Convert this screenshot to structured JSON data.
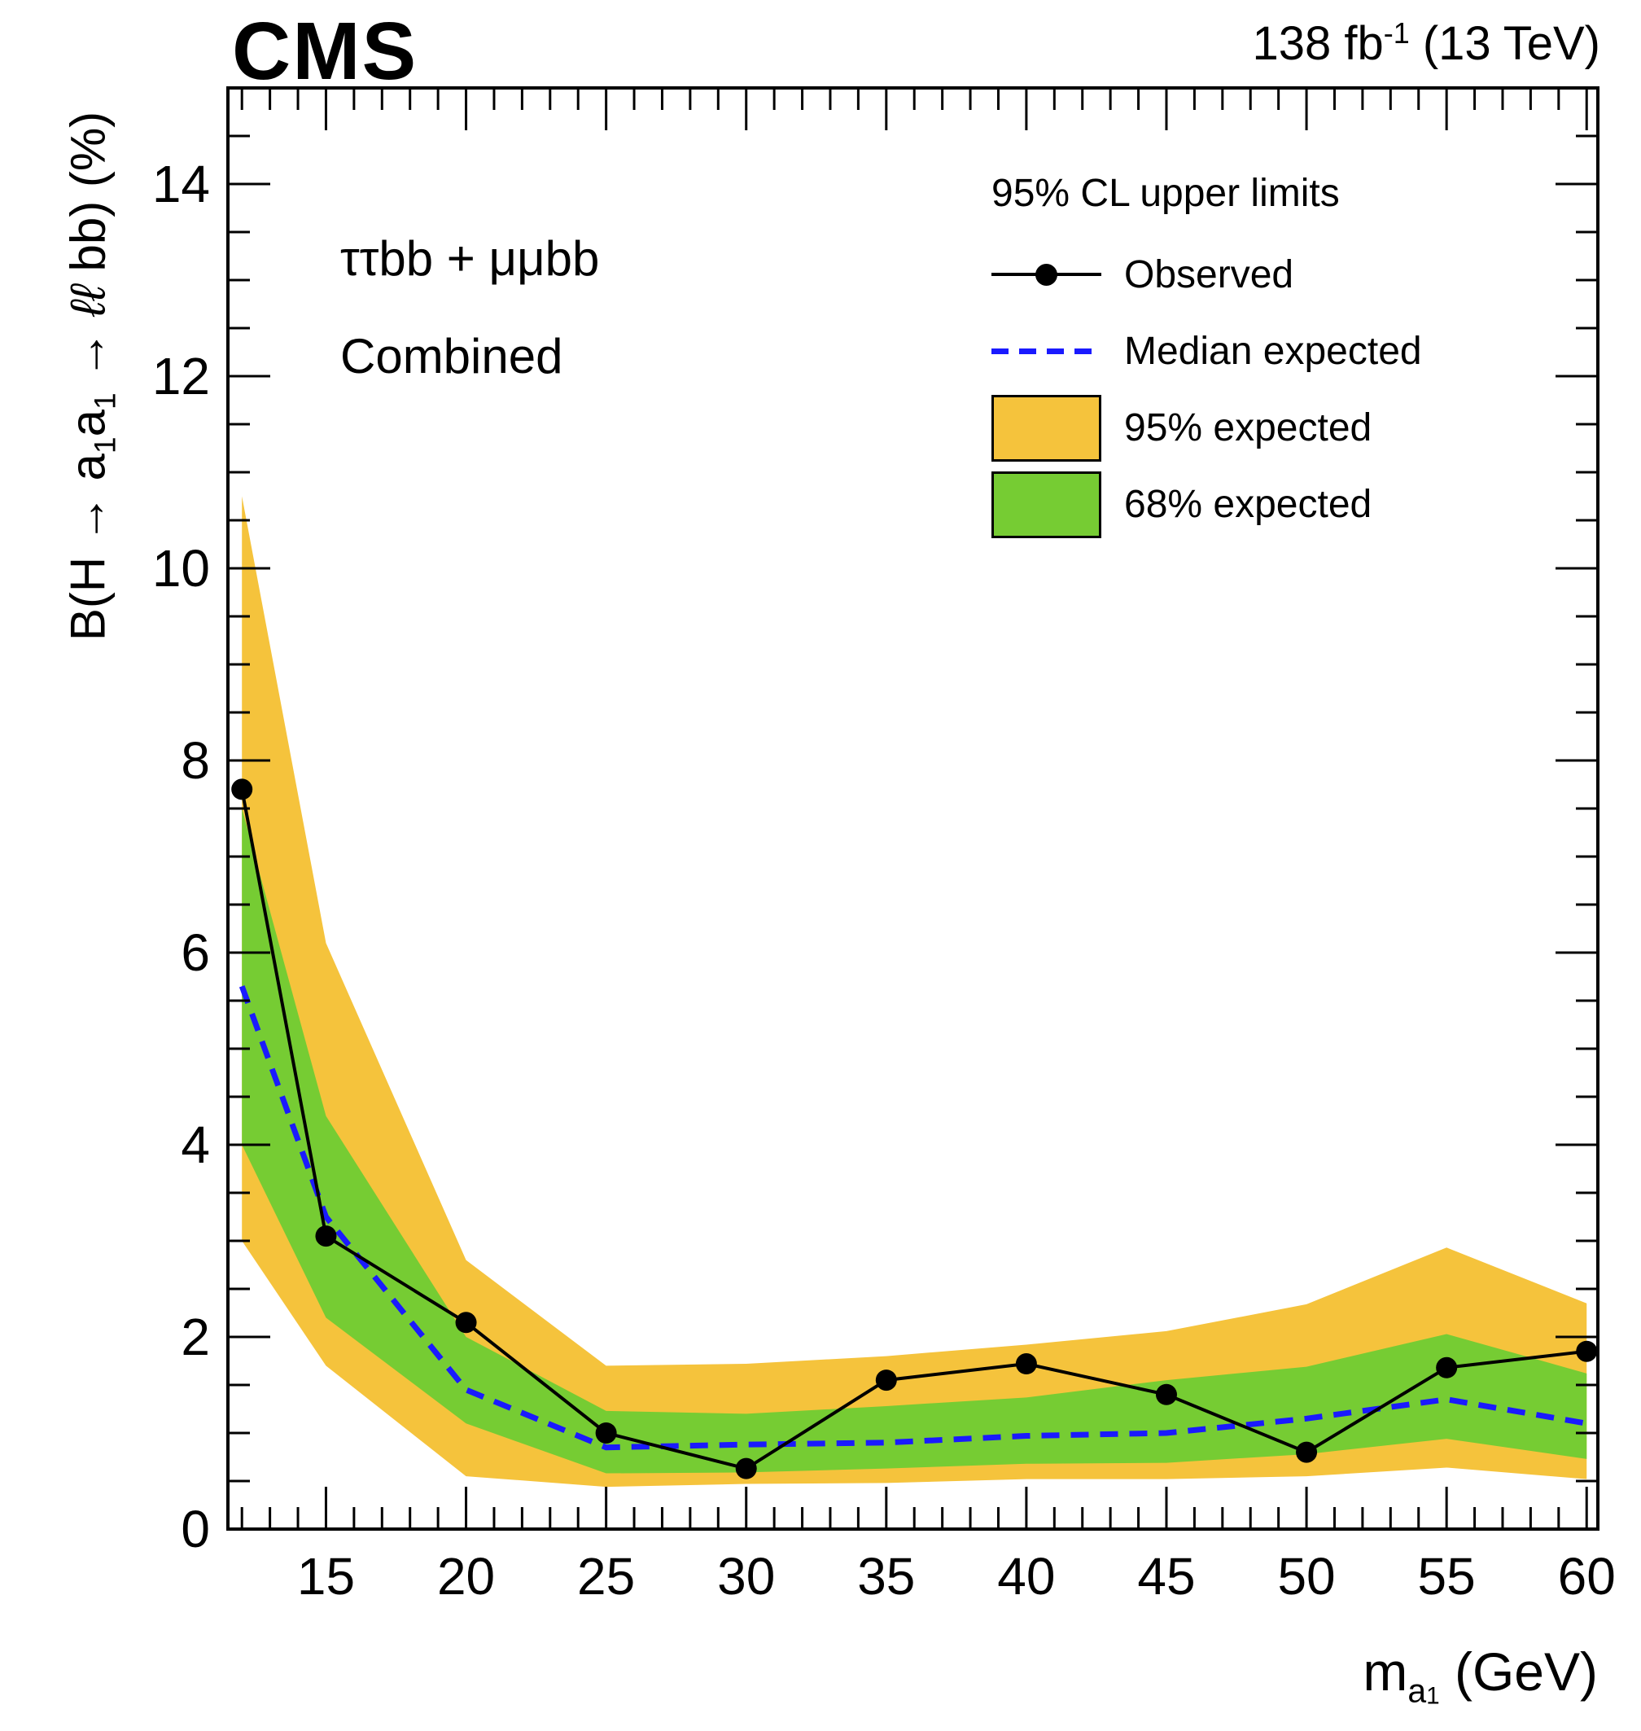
{
  "header": {
    "experiment": "CMS",
    "lumi_parts": [
      {
        "t": "138 fb"
      },
      {
        "t": "-1",
        "sup": true
      },
      {
        "t": " (13 TeV)"
      }
    ]
  },
  "labels": {
    "channel": "ττbb + μμbb",
    "dataset": "Combined"
  },
  "legend": {
    "title": "95% CL upper limits",
    "observed": "Observed",
    "median": "Median expected",
    "band95": "95% expected",
    "band68": "68% expected"
  },
  "axes": {
    "x": {
      "title_parts": [
        {
          "t": "m"
        },
        {
          "t": "a",
          "sub": true
        },
        {
          "t": "1",
          "subsub": true
        },
        {
          "t": " (GeV)"
        }
      ],
      "tick_labels": [
        "15",
        "20",
        "25",
        "30",
        "35",
        "40",
        "45",
        "50",
        "55",
        "60"
      ]
    },
    "y": {
      "title_parts": [
        {
          "t": "B(H "
        },
        {
          "t": "→"
        },
        {
          "t": " a"
        },
        {
          "t": "1",
          "sub": true
        },
        {
          "t": "a"
        },
        {
          "t": "1",
          "sub": true
        },
        {
          "t": " "
        },
        {
          "t": "→"
        },
        {
          "t": " "
        },
        {
          "t": "ℓℓ",
          "italic": true
        },
        {
          "t": " bb) (%)"
        }
      ],
      "tick_labels": [
        "0",
        "2",
        "4",
        "6",
        "8",
        "10",
        "12",
        "14"
      ]
    }
  },
  "colors": {
    "band95": "#f5c33c",
    "band68": "#76cc33",
    "median": "#1a1aff",
    "observed": "#000000",
    "frame": "#000000"
  },
  "chart_data": {
    "type": "line",
    "title": "",
    "xlabel": "m_a1 (GeV)",
    "ylabel": "B(H → a1a1 → ll bb) (%)",
    "xlim": [
      11.5,
      60.4
    ],
    "ylim": [
      0,
      15
    ],
    "grid": false,
    "legend_position": "top-right",
    "x_major_ticks": [
      15,
      20,
      25,
      30,
      35,
      40,
      45,
      50,
      55,
      60
    ],
    "y_major_ticks": [
      0,
      2,
      4,
      6,
      8,
      10,
      12,
      14
    ],
    "x_minor_step": 1,
    "y_minor_step": 0.5,
    "x_values": [
      12,
      15,
      20,
      25,
      30,
      35,
      40,
      45,
      50,
      55,
      60
    ],
    "series": [
      {
        "name": "95% expected",
        "type": "band",
        "color": "#f5c33c",
        "low": [
          3.0,
          1.7,
          0.55,
          0.44,
          0.47,
          0.48,
          0.52,
          0.52,
          0.55,
          0.64,
          0.52
        ],
        "high": [
          10.75,
          6.1,
          2.8,
          1.7,
          1.72,
          1.8,
          1.92,
          2.06,
          2.34,
          2.93,
          2.35
        ]
      },
      {
        "name": "68% expected",
        "type": "band",
        "color": "#76cc33",
        "low": [
          4.0,
          2.2,
          1.1,
          0.58,
          0.59,
          0.63,
          0.68,
          0.69,
          0.78,
          0.94,
          0.73
        ],
        "high": [
          7.5,
          4.3,
          2.0,
          1.23,
          1.2,
          1.28,
          1.37,
          1.55,
          1.69,
          2.03,
          1.62
        ]
      },
      {
        "name": "Median expected",
        "type": "dashed-line",
        "color": "#1a1aff",
        "values": [
          5.65,
          3.25,
          1.45,
          0.85,
          0.88,
          0.9,
          0.97,
          1.0,
          1.15,
          1.35,
          1.1
        ]
      },
      {
        "name": "Observed",
        "type": "line-markers",
        "color": "#000000",
        "values": [
          7.7,
          3.05,
          2.15,
          1.0,
          0.63,
          1.55,
          1.72,
          1.4,
          0.8,
          1.68,
          1.85
        ]
      }
    ]
  }
}
